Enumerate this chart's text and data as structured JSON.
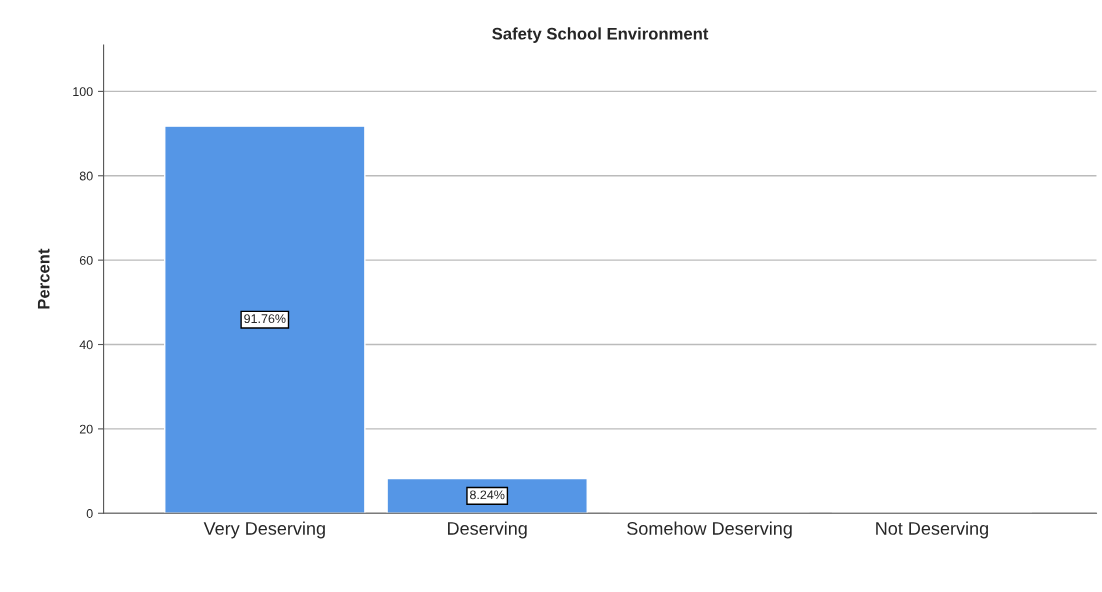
{
  "chart_data": {
    "type": "bar",
    "title": "Safety School Environment",
    "ylabel": "Percent",
    "categories": [
      "Very Deserving",
      "Deserving",
      "Somehow Deserving",
      "Not Deserving"
    ],
    "values": [
      91.76,
      8.24,
      0,
      0
    ],
    "value_labels": [
      "91.76%",
      "8.24%",
      null,
      null
    ],
    "color": "#5596e6",
    "ylim": [
      0,
      111
    ],
    "yticks": [
      0,
      20,
      40,
      60,
      80,
      100
    ],
    "grid": "y",
    "legend": false
  }
}
